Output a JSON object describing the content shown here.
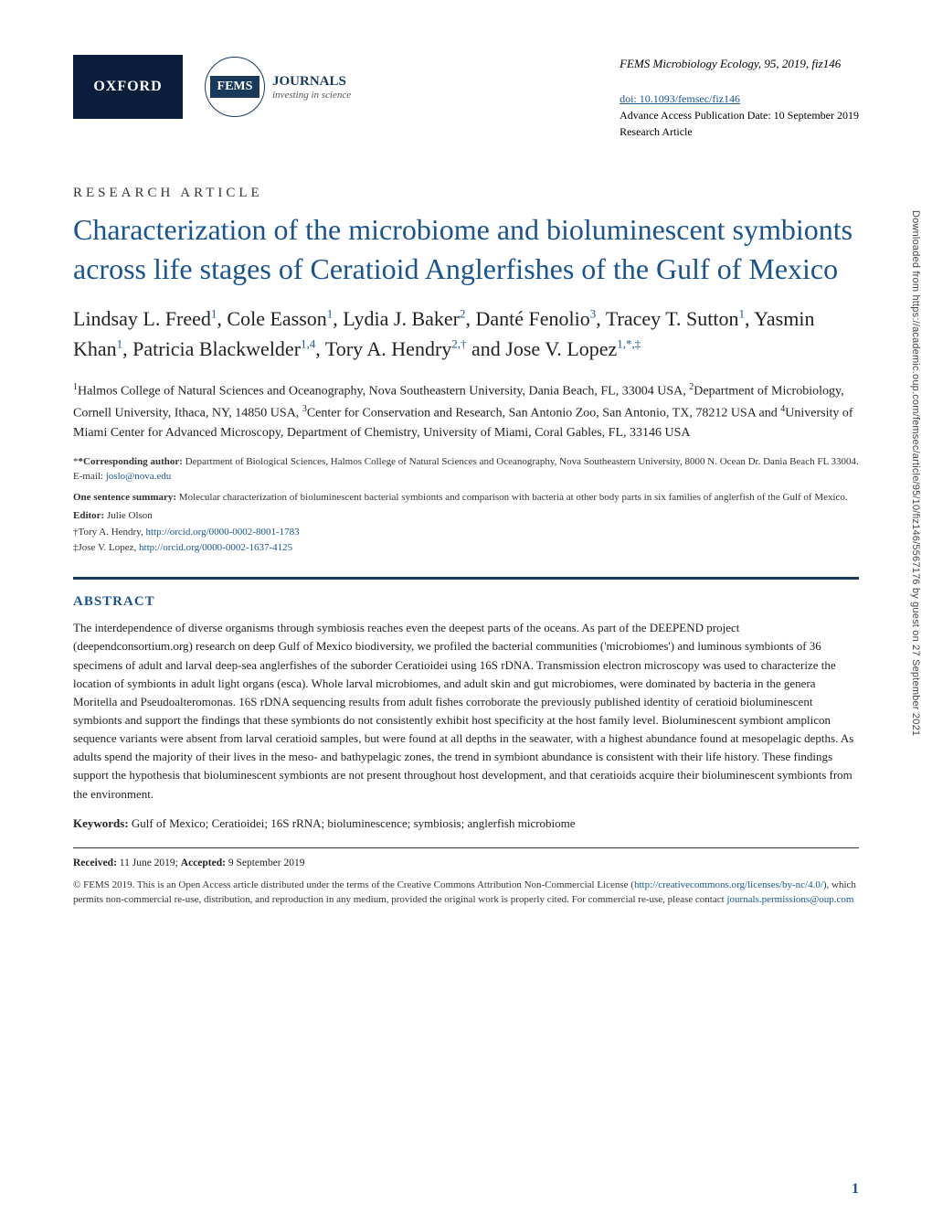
{
  "header": {
    "oxford_label": "OXFORD",
    "fems_inner": "FEMS",
    "fems_journals": "JOURNALS",
    "fems_tagline": "investing in science",
    "journal_citation": "FEMS Microbiology Ecology, 95, 2019, fiz146",
    "doi": "doi: 10.1093/femsec/fiz146",
    "pub_date": "Advance Access Publication Date: 10 September 2019",
    "article_type_small": "Research Article"
  },
  "article": {
    "type_label": "RESEARCH ARTICLE",
    "title": "Characterization of the microbiome and bioluminescent symbionts across life stages of Ceratioid Anglerfishes of the Gulf of Mexico",
    "authors_html": "Lindsay L. Freed<sup>1</sup>, Cole Easson<sup>1</sup>, Lydia J. Baker<sup>2</sup>, Danté Fenolio<sup>3</sup>, Tracey T. Sutton<sup>1</sup>, Yasmin Khan<sup>1</sup>, Patricia Blackwelder<sup>1,4</sup>, Tory A. Hendry<sup>2,†</sup> and Jose V. Lopez<sup>1,*,‡</sup>",
    "affiliations_html": "<sup>1</sup>Halmos College of Natural Sciences and Oceanography, Nova Southeastern University, Dania Beach, FL, 33004 USA, <sup>2</sup>Department of Microbiology, Cornell University, Ithaca, NY, 14850 USA, <sup>3</sup>Center for Conservation and Research, San Antonio Zoo, San Antonio, TX, 78212 USA and <sup>4</sup>University of Miami Center for Advanced Microscopy, Department of Chemistry, University of Miami, Coral Gables, FL, 33146 USA",
    "corresponding_label": "*Corresponding author:",
    "corresponding_text": " Department of Biological Sciences, Halmos College of Natural Sciences and Oceanography, Nova Southeastern University, 8000 N. Ocean Dr. Dania Beach FL 33004. E-mail: ",
    "corresponding_email": "joslo@nova.edu",
    "summary_label": "One sentence summary:",
    "summary_text": " Molecular characterization of bioluminescent bacterial symbionts and comparison with bacteria at other body parts in six families of anglerfish of the Gulf of Mexico.",
    "editor_label": "Editor:",
    "editor_name": " Julie Olson",
    "orcid1_prefix": "†Tory A. Hendry, ",
    "orcid1_url": "http://orcid.org/0000-0002-8001-1783",
    "orcid2_prefix": "‡Jose V. Lopez, ",
    "orcid2_url": "http://orcid.org/0000-0002-1637-4125"
  },
  "abstract": {
    "heading": "ABSTRACT",
    "body": "The interdependence of diverse organisms through symbiosis reaches even the deepest parts of the oceans. As part of the DEEPEND project (deependconsortium.org) research on deep Gulf of Mexico biodiversity, we profiled the bacterial communities ('microbiomes') and luminous symbionts of 36 specimens of adult and larval deep-sea anglerfishes of the suborder Ceratioidei using 16S rDNA. Transmission electron microscopy was used to characterize the location of symbionts in adult light organs (esca). Whole larval microbiomes, and adult skin and gut microbiomes, were dominated by bacteria in the genera Moritella and Pseudoalteromonas. 16S rDNA sequencing results from adult fishes corroborate the previously published identity of ceratioid bioluminescent symbionts and support the findings that these symbionts do not consistently exhibit host specificity at the host family level. Bioluminescent symbiont amplicon sequence variants were absent from larval ceratioid samples, but were found at all depths in the seawater, with a highest abundance found at mesopelagic depths. As adults spend the majority of their lives in the meso- and bathypelagic zones, the trend in symbiont abundance is consistent with their life history. These findings support the hypothesis that bioluminescent symbionts are not present throughout host development, and that ceratioids acquire their bioluminescent symbionts from the environment.",
    "keywords_label": "Keywords:",
    "keywords_text": " Gulf of Mexico; Ceratioidei; 16S rRNA; bioluminescence; symbiosis; anglerfish microbiome"
  },
  "footer": {
    "received_label": "Received:",
    "received_date": " 11 June 2019; ",
    "accepted_label": "Accepted:",
    "accepted_date": " 9 September 2019",
    "copyright_text": "© FEMS 2019. This is an Open Access article distributed under the terms of the Creative Commons Attribution Non-Commercial License (",
    "cc_url": "http://creativecommons.org/licenses/by-nc/4.0/",
    "copyright_text2": "), which permits non-commercial re-use, distribution, and reproduction in any medium, provided the original work is properly cited. For commercial re-use, please contact ",
    "permissions_email": "journals.permissions@oup.com",
    "page_number": "1"
  },
  "side": {
    "download_text": "Downloaded from https://academic.oup.com/femsec/article/95/10/fiz146/5567176 by guest on 27 September 2021"
  },
  "colors": {
    "link": "#1a5490",
    "title": "#1a5490",
    "rule": "#1a3a5c",
    "oxford_bg": "#0a1e3c"
  },
  "typography": {
    "title_fontsize": 32,
    "authors_fontsize": 22,
    "body_fontsize": 13,
    "small_fontsize": 11
  }
}
